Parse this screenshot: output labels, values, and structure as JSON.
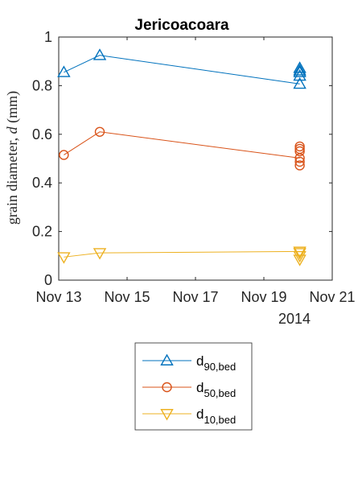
{
  "chart_data": {
    "type": "line",
    "title": "Jericoacoara",
    "ylabel_text": "grain diameter, ",
    "ylabel_symbol": "d",
    "ylabel_unit": " (mm)",
    "xlabel": "",
    "x_year_label": "2014",
    "ylim": [
      0,
      1
    ],
    "yticks": [
      "0",
      "0.2",
      "0.4",
      "0.6",
      "0.8",
      "1"
    ],
    "xlim": [
      13,
      21
    ],
    "xtick_values": [
      13,
      15,
      17,
      19,
      21
    ],
    "xtick_labels": [
      "Nov 13",
      "Nov 15",
      "Nov 17",
      "Nov 19",
      "Nov 21"
    ],
    "grid": false,
    "legend_placement": "below",
    "series": [
      {
        "name_main": "d",
        "name_sub": "90,bed",
        "color": "#0072BD",
        "marker": "triangle-up",
        "line_x": [
          13.15,
          14.2,
          20.05
        ],
        "line_y": [
          0.855,
          0.925,
          0.807
        ],
        "markers_x": [
          13.15,
          14.2,
          20.05,
          20.05,
          20.05,
          20.05,
          20.05
        ],
        "markers_y": [
          0.855,
          0.925,
          0.807,
          0.84,
          0.855,
          0.862,
          0.872
        ]
      },
      {
        "name_main": "d",
        "name_sub": "50,bed",
        "color": "#D95319",
        "marker": "circle",
        "line_x": [
          13.15,
          14.2,
          20.05
        ],
        "line_y": [
          0.515,
          0.61,
          0.502
        ],
        "markers_x": [
          13.15,
          14.2,
          20.05,
          20.05,
          20.05,
          20.05,
          20.05,
          20.05
        ],
        "markers_y": [
          0.515,
          0.61,
          0.472,
          0.487,
          0.502,
          0.53,
          0.54,
          0.55
        ]
      },
      {
        "name_main": "d",
        "name_sub": "10,bed",
        "color": "#EDB120",
        "marker": "triangle-down",
        "line_x": [
          13.15,
          14.2,
          20.05
        ],
        "line_y": [
          0.095,
          0.112,
          0.118
        ],
        "markers_x": [
          13.15,
          14.2,
          20.05,
          20.05,
          20.05,
          20.05
        ],
        "markers_y": [
          0.095,
          0.112,
          0.085,
          0.1,
          0.112,
          0.118
        ]
      }
    ]
  }
}
